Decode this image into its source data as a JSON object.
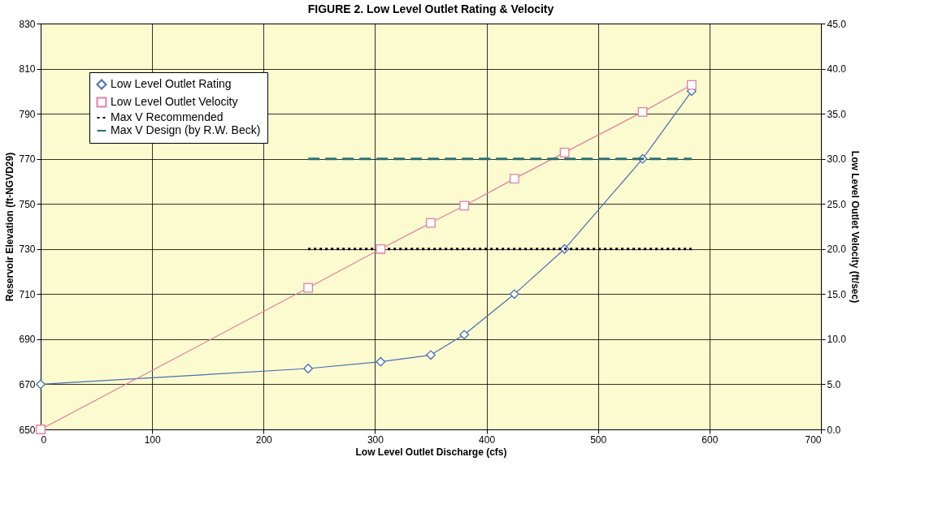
{
  "chart_data": {
    "type": "line",
    "title": "FIGURE 2.  Low Level Outlet Rating & Velocity",
    "xlabel": "Low Level Outlet Discharge (cfs)",
    "ylabel": "Reservoir Elevation (ft-NGVD29)",
    "y2label": "Low Level Outlet Velocity (ft/sec)",
    "xlim": [
      0,
      700
    ],
    "xticks": [
      0,
      100,
      200,
      300,
      400,
      500,
      600,
      700
    ],
    "ylim": [
      650,
      830
    ],
    "yticks": [
      650,
      670,
      690,
      710,
      730,
      750,
      770,
      790,
      810,
      830
    ],
    "y2lim": [
      0,
      45
    ],
    "y2ticks": [
      {
        "value": 0,
        "label": "0.0"
      },
      {
        "value": 5,
        "label": "5.0"
      },
      {
        "value": 10,
        "label": "10.0"
      },
      {
        "value": 15,
        "label": "15.0"
      },
      {
        "value": 20,
        "label": "20.0"
      },
      {
        "value": 25,
        "label": "25.0"
      },
      {
        "value": 30,
        "label": "30.0"
      },
      {
        "value": 35,
        "label": "35.0"
      },
      {
        "value": 40,
        "label": "40.0"
      },
      {
        "value": 45,
        "label": "45.0"
      }
    ],
    "grid": true,
    "legend": "top left",
    "series": [
      {
        "name": "Low Level Outlet Rating",
        "color": "#4a6fb5",
        "marker": "diamond",
        "line_style": "solid",
        "x": [
          0,
          240,
          305,
          350,
          380,
          425,
          470,
          540,
          584
        ],
        "values": [
          670,
          677,
          680,
          683,
          692,
          710,
          730,
          770,
          800
        ]
      },
      {
        "name": "Low Level Outlet Velocity",
        "color": "#e27fa3",
        "marker": "square",
        "line_style": "solid",
        "axis": "y2",
        "x": [
          0,
          240,
          305,
          350,
          380,
          425,
          470,
          540,
          584
        ],
        "values": [
          0,
          15.7,
          20.0,
          22.9,
          24.8,
          27.8,
          30.7,
          35.2,
          38.2
        ]
      },
      {
        "name": "Max V Recommended",
        "color": "#000000",
        "marker": "none",
        "line_style": "dotted",
        "axis": "y2",
        "x": [
          240,
          584
        ],
        "values": [
          20,
          20
        ]
      },
      {
        "name": "Max V Design (by R.W. Beck)",
        "color": "#2a6f73",
        "marker": "none",
        "line_style": "dashed",
        "axis": "y2",
        "x": [
          240,
          584
        ],
        "values": [
          30,
          30
        ]
      }
    ]
  }
}
